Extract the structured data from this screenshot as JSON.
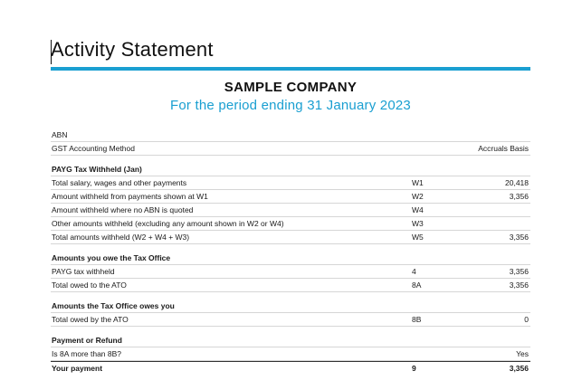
{
  "document": {
    "title": "Activity Statement",
    "company": "SAMPLE COMPANY",
    "period": "For the period ending 31 January 2023"
  },
  "header_rows": [
    {
      "label": "ABN",
      "code": "",
      "value": ""
    },
    {
      "label": "GST Accounting Method",
      "code": "",
      "value": "Accruals Basis"
    }
  ],
  "sections": {
    "payg": {
      "heading": "PAYG Tax Withheld (Jan)",
      "rows": [
        {
          "label": "Total salary, wages and other payments",
          "code": "W1",
          "value": "20,418"
        },
        {
          "label": "Amount withheld from payments shown at W1",
          "code": "W2",
          "value": "3,356"
        },
        {
          "label": "Amount withheld where no ABN is quoted",
          "code": "W4",
          "value": ""
        },
        {
          "label": "Other amounts withheld (excluding any amount shown in W2 or W4)",
          "code": "W3",
          "value": ""
        },
        {
          "label": "Total amounts withheld (W2 + W4 + W3)",
          "code": "W5",
          "value": "3,356"
        }
      ]
    },
    "owe": {
      "heading": "Amounts you owe the Tax Office",
      "rows": [
        {
          "label": "PAYG tax withheld",
          "code": "4",
          "value": "3,356"
        },
        {
          "label": "Total owed to the ATO",
          "code": "8A",
          "value": "3,356"
        }
      ]
    },
    "owes_you": {
      "heading": "Amounts the Tax Office owes you",
      "rows": [
        {
          "label": "Total owed by the ATO",
          "code": "8B",
          "value": "0"
        }
      ]
    },
    "refund": {
      "heading": "Payment or Refund",
      "rows": [
        {
          "label": "Is 8A more than 8B?",
          "code": "",
          "value": "Yes"
        }
      ]
    }
  },
  "total": {
    "label": "Your payment",
    "code": "9",
    "value": "3,356"
  },
  "colors": {
    "accent": "#1a9fd1"
  }
}
